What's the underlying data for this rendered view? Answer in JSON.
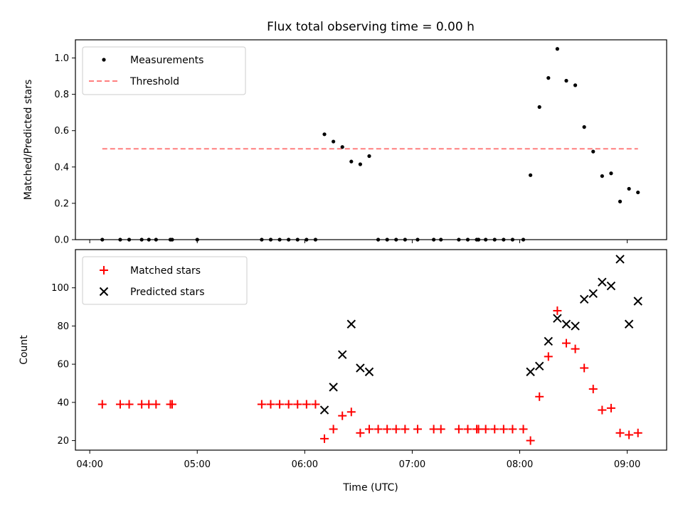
{
  "chart_data": [
    {
      "type": "scatter",
      "title": "Flux total observing time = 0.00 h",
      "xlabel": "",
      "ylabel": "Matched/Predicted stars",
      "ylim": [
        0,
        1.1
      ],
      "yticks": [
        "0.0",
        "0.2",
        "0.4",
        "0.6",
        "0.8",
        "1.0"
      ],
      "legend": {
        "placement": "upper-left"
      },
      "series": [
        {
          "name": "Measurements",
          "marker": "dot",
          "color": "#000000",
          "points": [
            [
              "04:07",
              0.0
            ],
            [
              "04:17",
              0.0
            ],
            [
              "04:22",
              0.0
            ],
            [
              "04:29",
              0.0
            ],
            [
              "04:33",
              0.0
            ],
            [
              "04:37",
              0.0
            ],
            [
              "04:45",
              0.0
            ],
            [
              "04:46",
              0.0
            ],
            [
              "05:00",
              0.0
            ],
            [
              "05:36",
              0.0
            ],
            [
              "05:41",
              0.0
            ],
            [
              "05:46",
              0.0
            ],
            [
              "05:51",
              0.0
            ],
            [
              "05:56",
              0.0
            ],
            [
              "06:01",
              0.0
            ],
            [
              "06:06",
              0.0
            ],
            [
              "06:11",
              0.58
            ],
            [
              "06:16",
              0.54
            ],
            [
              "06:21",
              0.51
            ],
            [
              "06:26",
              0.43
            ],
            [
              "06:31",
              0.415
            ],
            [
              "06:36",
              0.46
            ],
            [
              "06:41",
              0.0
            ],
            [
              "06:46",
              0.0
            ],
            [
              "06:51",
              0.0
            ],
            [
              "06:56",
              0.0
            ],
            [
              "07:03",
              0.0
            ],
            [
              "07:12",
              0.0
            ],
            [
              "07:16",
              0.0
            ],
            [
              "07:26",
              0.0
            ],
            [
              "07:31",
              0.0
            ],
            [
              "07:36",
              0.0
            ],
            [
              "07:37",
              0.0
            ],
            [
              "07:41",
              0.0
            ],
            [
              "07:46",
              0.0
            ],
            [
              "07:51",
              0.0
            ],
            [
              "07:56",
              0.0
            ],
            [
              "08:02",
              0.0
            ],
            [
              "08:06",
              0.355
            ],
            [
              "08:11",
              0.73
            ],
            [
              "08:16",
              0.89
            ],
            [
              "08:21",
              1.05
            ],
            [
              "08:26",
              0.875
            ],
            [
              "08:31",
              0.85
            ],
            [
              "08:36",
              0.62
            ],
            [
              "08:41",
              0.485
            ],
            [
              "08:46",
              0.35
            ],
            [
              "08:51",
              0.365
            ],
            [
              "08:56",
              0.21
            ],
            [
              "09:01",
              0.28
            ],
            [
              "09:06",
              0.26
            ]
          ]
        },
        {
          "name": "Threshold",
          "marker": "dashed-line",
          "color": "#ff7f7f",
          "points": [
            [
              "04:07",
              0.5
            ],
            [
              "09:06",
              0.5
            ]
          ]
        }
      ]
    },
    {
      "type": "scatter",
      "title": "",
      "xlabel": "Time (UTC)",
      "ylabel": "Count",
      "ylim": [
        15,
        120
      ],
      "yticks": [
        "20",
        "40",
        "60",
        "80",
        "100"
      ],
      "xlim": [
        "03:52",
        "09:22"
      ],
      "xticks": [
        "04:00",
        "05:00",
        "06:00",
        "07:00",
        "08:00",
        "09:00"
      ],
      "legend": {
        "placement": "upper-left"
      },
      "series": [
        {
          "name": "Matched stars",
          "marker": "plus",
          "color": "#ff0000",
          "points": [
            [
              "04:07",
              39
            ],
            [
              "04:17",
              39
            ],
            [
              "04:22",
              39
            ],
            [
              "04:29",
              39
            ],
            [
              "04:33",
              39
            ],
            [
              "04:37",
              39
            ],
            [
              "04:45",
              39
            ],
            [
              "04:46",
              39
            ],
            [
              "05:36",
              39
            ],
            [
              "05:41",
              39
            ],
            [
              "05:46",
              39
            ],
            [
              "05:51",
              39
            ],
            [
              "05:56",
              39
            ],
            [
              "06:01",
              39
            ],
            [
              "06:06",
              39
            ],
            [
              "06:11",
              21
            ],
            [
              "06:16",
              26
            ],
            [
              "06:21",
              33
            ],
            [
              "06:26",
              35
            ],
            [
              "06:31",
              24
            ],
            [
              "06:36",
              26
            ],
            [
              "06:41",
              26
            ],
            [
              "06:46",
              26
            ],
            [
              "06:51",
              26
            ],
            [
              "06:56",
              26
            ],
            [
              "07:03",
              26
            ],
            [
              "07:12",
              26
            ],
            [
              "07:16",
              26
            ],
            [
              "07:26",
              26
            ],
            [
              "07:31",
              26
            ],
            [
              "07:36",
              26
            ],
            [
              "07:37",
              26
            ],
            [
              "07:41",
              26
            ],
            [
              "07:46",
              26
            ],
            [
              "07:51",
              26
            ],
            [
              "07:56",
              26
            ],
            [
              "08:02",
              26
            ],
            [
              "08:06",
              20
            ],
            [
              "08:11",
              43
            ],
            [
              "08:16",
              64
            ],
            [
              "08:21",
              88
            ],
            [
              "08:26",
              71
            ],
            [
              "08:31",
              68
            ],
            [
              "08:36",
              58
            ],
            [
              "08:41",
              47
            ],
            [
              "08:46",
              36
            ],
            [
              "08:51",
              37
            ],
            [
              "08:56",
              24
            ],
            [
              "09:01",
              23
            ],
            [
              "09:06",
              24
            ]
          ]
        },
        {
          "name": "Predicted stars",
          "marker": "x",
          "color": "#000000",
          "points": [
            [
              "06:11",
              36
            ],
            [
              "06:16",
              48
            ],
            [
              "06:21",
              65
            ],
            [
              "06:26",
              81
            ],
            [
              "06:31",
              58
            ],
            [
              "06:36",
              56
            ],
            [
              "08:06",
              56
            ],
            [
              "08:11",
              59
            ],
            [
              "08:16",
              72
            ],
            [
              "08:21",
              84
            ],
            [
              "08:26",
              81
            ],
            [
              "08:31",
              80
            ],
            [
              "08:36",
              94
            ],
            [
              "08:41",
              97
            ],
            [
              "08:46",
              103
            ],
            [
              "08:51",
              101
            ],
            [
              "08:56",
              115
            ],
            [
              "09:01",
              81
            ],
            [
              "09:06",
              93
            ]
          ]
        }
      ]
    }
  ]
}
